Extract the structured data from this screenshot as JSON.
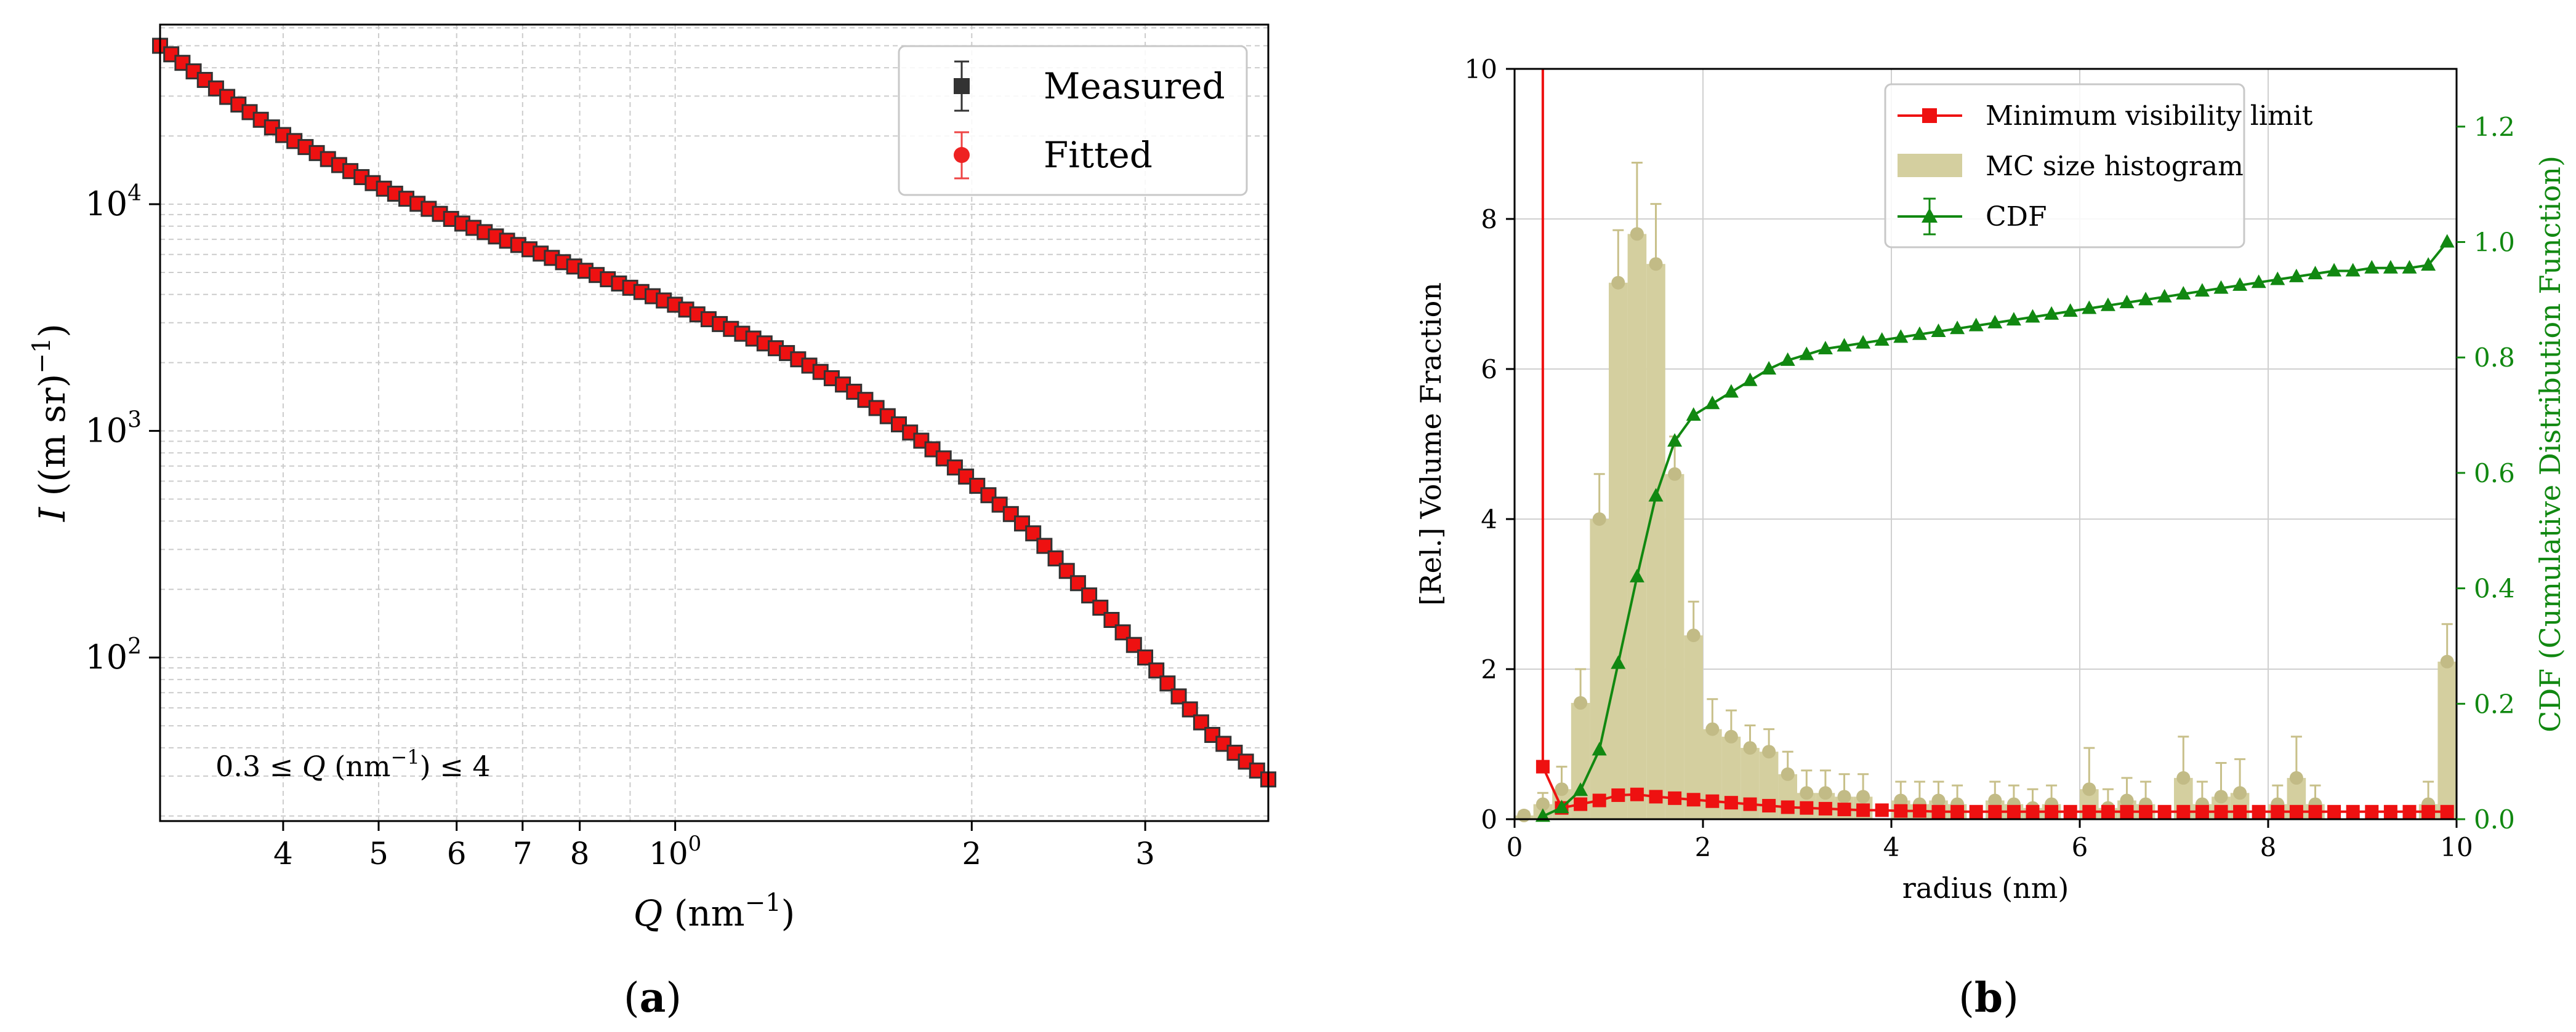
{
  "chart_data": [
    {
      "id": "a",
      "type": "scatter",
      "panel_label": "a",
      "xscale": "log",
      "yscale": "log",
      "xlabel": "Q (nm⁻¹)",
      "xlabel_parts": {
        "var": "Q",
        "unit_open": " (nm",
        "unit_sup": "−1",
        "unit_close": ")"
      },
      "ylabel": "I ((m sr)⁻¹)",
      "ylabel_parts": {
        "var": "I",
        "unit_open": " ((m sr)",
        "unit_sup": "−1",
        "unit_close": ")"
      },
      "xlim": [
        0.3,
        4.0
      ],
      "ylim": [
        19,
        62000
      ],
      "grid": true,
      "legend_position": "top-right",
      "annotation": "0.3 ≤ Q (nm⁻¹) ≤ 4",
      "annotation_parts": {
        "pre": "0.3 ≤ ",
        "var": "Q",
        "unit_open": " (nm",
        "unit_sup": "−1",
        "unit_close": ") ≤ 4"
      },
      "x_ticks": [
        {
          "value": 0.4,
          "label": "4"
        },
        {
          "value": 0.5,
          "label": "5"
        },
        {
          "value": 0.6,
          "label": "6"
        },
        {
          "value": 0.7,
          "label": "7"
        },
        {
          "value": 0.8,
          "label": "8"
        },
        {
          "value": 1.0,
          "label": "10",
          "label_sup": "0"
        },
        {
          "value": 2.0,
          "label": "2"
        },
        {
          "value": 3.0,
          "label": "3"
        }
      ],
      "y_ticks": [
        {
          "value": 100,
          "base": "10",
          "exp": "2"
        },
        {
          "value": 1000,
          "base": "10",
          "exp": "3"
        },
        {
          "value": 10000,
          "base": "10",
          "exp": "4"
        }
      ],
      "curve_knots": [
        [
          0.3,
          50000
        ],
        [
          0.35,
          30000
        ],
        [
          0.4,
          20200
        ],
        [
          0.5,
          12000
        ],
        [
          0.6,
          8400
        ],
        [
          0.7,
          6500
        ],
        [
          0.8,
          5200
        ],
        [
          1.0,
          3600
        ],
        [
          1.3,
          2200
        ],
        [
          1.5,
          1550
        ],
        [
          1.8,
          870
        ],
        [
          2.0,
          600
        ],
        [
          2.3,
          360
        ],
        [
          2.5,
          240
        ],
        [
          2.8,
          140
        ],
        [
          3.0,
          100
        ],
        [
          3.5,
          46
        ],
        [
          4.0,
          29
        ]
      ],
      "n_points": 100,
      "series": [
        {
          "name": "Measured",
          "color": "#333333",
          "marker": "square"
        },
        {
          "name": "Fitted",
          "color": "#ee1111",
          "marker": "square"
        }
      ]
    },
    {
      "id": "b",
      "type": "bar",
      "panel_label": "b",
      "xlabel": "radius (nm)",
      "ylabel": "[Rel.] Volume Fraction",
      "ylabel_right": "CDF (Cumulative Distribution Function)",
      "xlim": [
        0,
        10
      ],
      "ylim": [
        0,
        10
      ],
      "ylim_right": [
        0,
        1.3
      ],
      "grid": true,
      "legend_position": "top-center",
      "x_ticks": [
        "0",
        "2",
        "4",
        "6",
        "8",
        "10"
      ],
      "y_ticks": [
        "0",
        "2",
        "4",
        "6",
        "8",
        "10"
      ],
      "y_ticks_right": [
        "0.0",
        "0.2",
        "0.4",
        "0.6",
        "0.8",
        "1.0",
        "1.2"
      ],
      "bin_width": 0.2,
      "bin_centers": [
        0.1,
        0.3,
        0.5,
        0.7,
        0.9,
        1.1,
        1.3,
        1.5,
        1.7,
        1.9,
        2.1,
        2.3,
        2.5,
        2.7,
        2.9,
        3.1,
        3.3,
        3.5,
        3.7,
        3.9,
        4.1,
        4.3,
        4.5,
        4.7,
        4.9,
        5.1,
        5.3,
        5.5,
        5.7,
        5.9,
        6.1,
        6.3,
        6.5,
        6.7,
        6.9,
        7.1,
        7.3,
        7.5,
        7.7,
        7.9,
        8.1,
        8.3,
        8.5,
        8.7,
        8.9,
        9.1,
        9.3,
        9.5,
        9.7,
        9.9
      ],
      "histogram": {
        "name": "MC size histogram",
        "color": "#d4cf9f",
        "values": [
          0.05,
          0.2,
          0.4,
          1.55,
          4.0,
          7.15,
          7.8,
          7.4,
          4.6,
          2.45,
          1.2,
          1.1,
          0.95,
          0.9,
          0.6,
          0.35,
          0.35,
          0.3,
          0.3,
          0.0,
          0.25,
          0.2,
          0.25,
          0.2,
          0.0,
          0.25,
          0.2,
          0.15,
          0.2,
          0.0,
          0.4,
          0.15,
          0.25,
          0.2,
          0.0,
          0.55,
          0.2,
          0.3,
          0.35,
          0.0,
          0.2,
          0.55,
          0.2,
          0.0,
          0.0,
          0.0,
          0.0,
          0.0,
          0.2,
          2.1
        ],
        "errors": [
          0.05,
          0.15,
          0.3,
          0.45,
          0.6,
          0.7,
          0.95,
          0.8,
          0.5,
          0.45,
          0.4,
          0.35,
          0.3,
          0.3,
          0.3,
          0.3,
          0.3,
          0.3,
          0.3,
          0.0,
          0.25,
          0.3,
          0.25,
          0.25,
          0.0,
          0.25,
          0.25,
          0.25,
          0.25,
          0.0,
          0.55,
          0.25,
          0.3,
          0.3,
          0.0,
          0.55,
          0.3,
          0.45,
          0.45,
          0.0,
          0.25,
          0.55,
          0.25,
          0.0,
          0.0,
          0.0,
          0.0,
          0.0,
          0.3,
          0.5
        ]
      },
      "min_visibility": {
        "name": "Minimum visibility limit",
        "color": "#ee1111",
        "x": [
          0.3,
          0.5,
          0.7,
          0.9,
          1.1,
          1.3,
          1.5,
          1.7,
          1.9,
          2.1,
          2.3,
          2.5,
          2.7,
          2.9,
          3.1,
          3.3,
          3.5,
          3.7,
          3.9,
          4.1,
          4.3,
          4.5,
          4.7,
          4.9,
          5.1,
          5.3,
          5.5,
          5.7,
          5.9,
          6.1,
          6.3,
          6.5,
          6.7,
          6.9,
          7.1,
          7.3,
          7.5,
          7.7,
          7.9,
          8.1,
          8.3,
          8.5,
          8.7,
          8.9,
          9.1,
          9.3,
          9.5,
          9.7,
          9.9
        ],
        "y": [
          0.7,
          0.15,
          0.2,
          0.25,
          0.32,
          0.33,
          0.3,
          0.28,
          0.26,
          0.24,
          0.22,
          0.2,
          0.18,
          0.16,
          0.15,
          0.14,
          0.13,
          0.12,
          0.12,
          0.11,
          0.11,
          0.1,
          0.1,
          0.1,
          0.1,
          0.1,
          0.1,
          0.1,
          0.1,
          0.1,
          0.1,
          0.1,
          0.1,
          0.1,
          0.1,
          0.1,
          0.1,
          0.1,
          0.1,
          0.1,
          0.1,
          0.1,
          0.1,
          0.1,
          0.1,
          0.1,
          0.1,
          0.1,
          0.1
        ],
        "vertical_line_x": 0.3
      },
      "cdf": {
        "name": "CDF",
        "color": "#118811",
        "axis": "right",
        "x": [
          0.3,
          0.5,
          0.7,
          0.9,
          1.1,
          1.3,
          1.5,
          1.7,
          1.9,
          2.1,
          2.3,
          2.5,
          2.7,
          2.9,
          3.1,
          3.3,
          3.5,
          3.7,
          3.9,
          4.1,
          4.3,
          4.5,
          4.7,
          4.9,
          5.1,
          5.3,
          5.5,
          5.7,
          5.9,
          6.1,
          6.3,
          6.5,
          6.7,
          6.9,
          7.1,
          7.3,
          7.5,
          7.7,
          7.9,
          8.1,
          8.3,
          8.5,
          8.7,
          8.9,
          9.1,
          9.3,
          9.5,
          9.7,
          9.9
        ],
        "y": [
          0.005,
          0.02,
          0.05,
          0.12,
          0.27,
          0.42,
          0.56,
          0.655,
          0.7,
          0.72,
          0.74,
          0.76,
          0.78,
          0.795,
          0.805,
          0.815,
          0.82,
          0.825,
          0.83,
          0.835,
          0.84,
          0.845,
          0.85,
          0.855,
          0.86,
          0.865,
          0.87,
          0.875,
          0.88,
          0.885,
          0.89,
          0.895,
          0.9,
          0.905,
          0.91,
          0.915,
          0.92,
          0.925,
          0.93,
          0.935,
          0.94,
          0.945,
          0.95,
          0.95,
          0.955,
          0.955,
          0.955,
          0.96,
          1.0
        ]
      }
    }
  ]
}
